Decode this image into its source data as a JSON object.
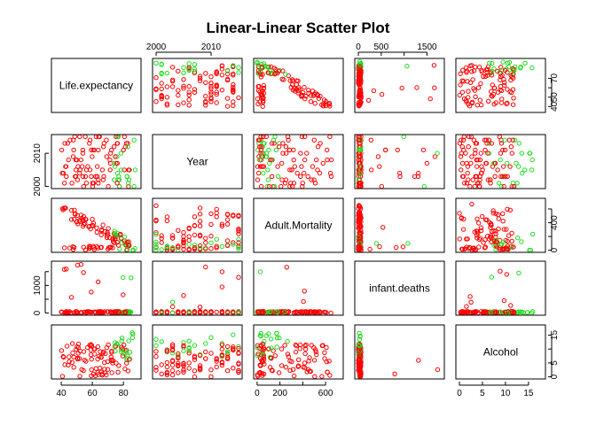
{
  "chart_data": {
    "type": "scatter",
    "title": "Linear-Linear Scatter Plot",
    "variables": [
      "Life.expectancy",
      "Year",
      "Adult.Mortality",
      "infant.deaths",
      "Alcohol"
    ],
    "ranges": {
      "Life.expectancy": [
        36,
        89
      ],
      "Year": [
        2000,
        2015
      ],
      "Adult.Mortality": [
        1,
        723
      ],
      "infant.deaths": [
        0,
        1800
      ],
      "Alcohol": [
        0.01,
        17.9
      ]
    },
    "ticks": {
      "Life.expectancy": [
        40,
        60,
        80
      ],
      "Life.expectancy_right": [
        40,
        50,
        60,
        70
      ],
      "Year": [
        2000,
        2010
      ],
      "Adult.Mortality": [
        0,
        200,
        400,
        600
      ],
      "infant.deaths": [
        0,
        500,
        1000,
        1500
      ],
      "Alcohol": [
        0,
        5,
        10,
        15
      ]
    },
    "tick_labels": {
      "top": {
        "Year": [
          "2000",
          "2010"
        ],
        "infant.deaths": [
          "0",
          "500",
          "1500"
        ]
      },
      "right": {
        "Life.expectancy": [
          "40",
          "50",
          "70"
        ],
        "Adult.Mortality": [
          "0",
          "400"
        ],
        "Alcohol": [
          "0",
          "5",
          "15"
        ]
      },
      "left": {
        "Year": [
          "2000",
          "2010"
        ],
        "infant.deaths": [
          "0",
          "1000"
        ]
      },
      "bottom": {
        "Life.expectancy": [
          "40",
          "60",
          "80"
        ],
        "Adult.Mortality": [
          "0",
          "200",
          "600"
        ],
        "Alcohol": [
          "0",
          "5",
          "10",
          "15"
        ]
      }
    },
    "colors": {
      "group_a": "#ff0000",
      "group_b": "#22dd22"
    },
    "marker": "open-circle",
    "grid": false,
    "legend": "none"
  }
}
